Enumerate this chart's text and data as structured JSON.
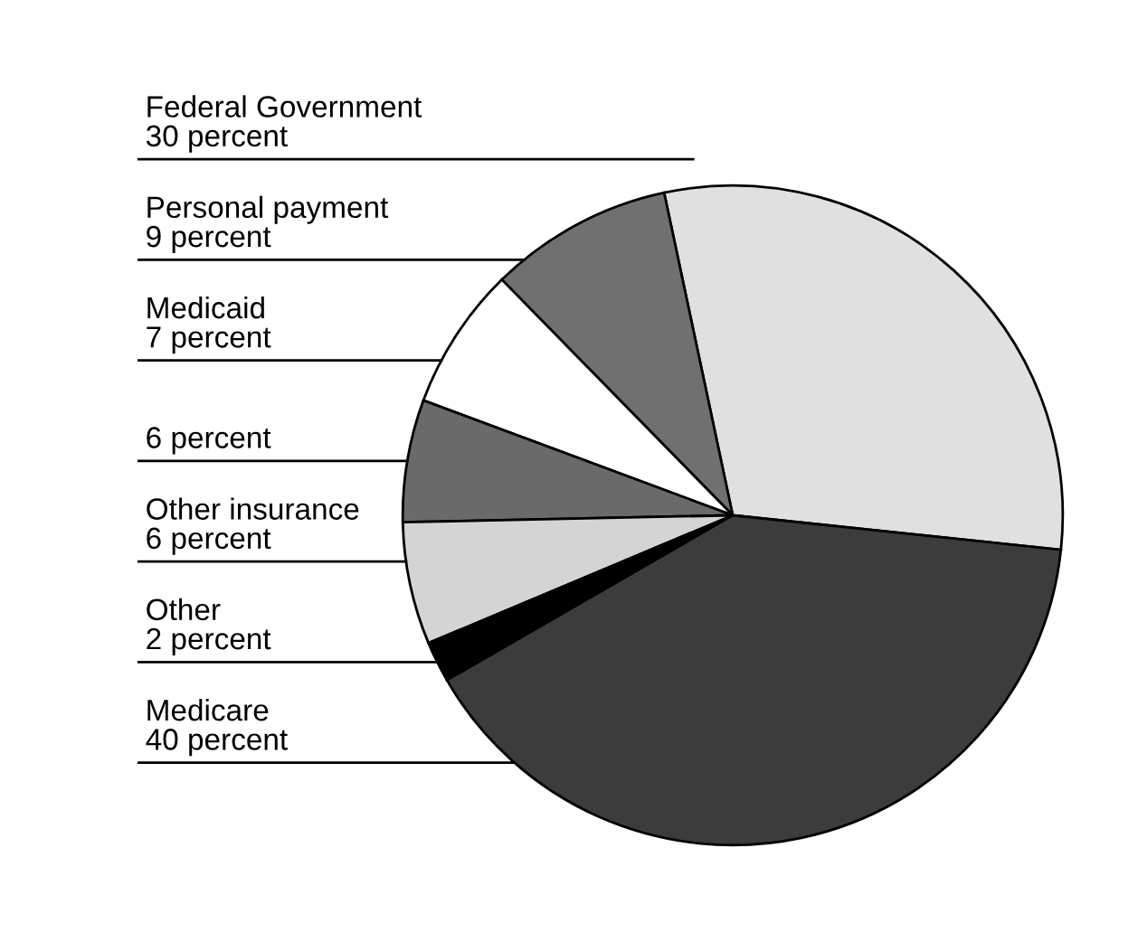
{
  "chart_data": {
    "type": "pie",
    "categories": [
      "Federal Government",
      "Personal payment",
      "Medicaid",
      null,
      "Other insurance",
      "Other",
      "Medicare"
    ],
    "values": [
      30,
      9,
      7,
      6,
      6,
      2,
      40
    ],
    "value_labels": [
      "30 percent",
      "9 percent",
      "7 percent",
      "6 percent",
      "6 percent",
      "2 percent",
      "40 percent"
    ],
    "colors": [
      "#e0e0e0",
      "#707070",
      "#ffffff",
      "#6a6a6a",
      "#d4d4d4",
      "#000000",
      "#3c3c3c"
    ]
  }
}
